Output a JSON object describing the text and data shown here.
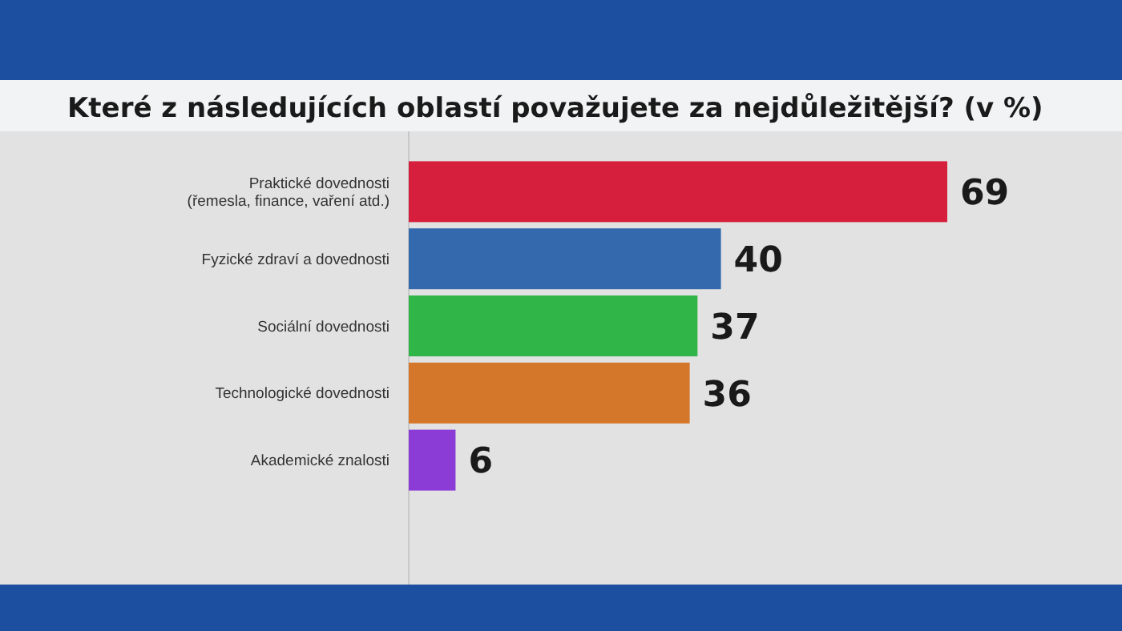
{
  "chart_data": {
    "type": "bar",
    "orientation": "horizontal",
    "title": "Které z následujících oblastí považujete za nejdůležitější? (v %)",
    "categories": [
      "Praktické dovednosti\n(řemesla, finance, vaření atd.)",
      "Fyzické zdraví a dovednosti",
      "Sociální dovednosti",
      "Technologické dovednosti",
      "Akademické znalosti"
    ],
    "values": [
      69,
      40,
      37,
      36,
      6
    ],
    "colors": [
      "#d61f3c",
      "#3469ad",
      "#2fb548",
      "#d5772b",
      "#8b3bd6"
    ],
    "data_labels": true
  }
}
